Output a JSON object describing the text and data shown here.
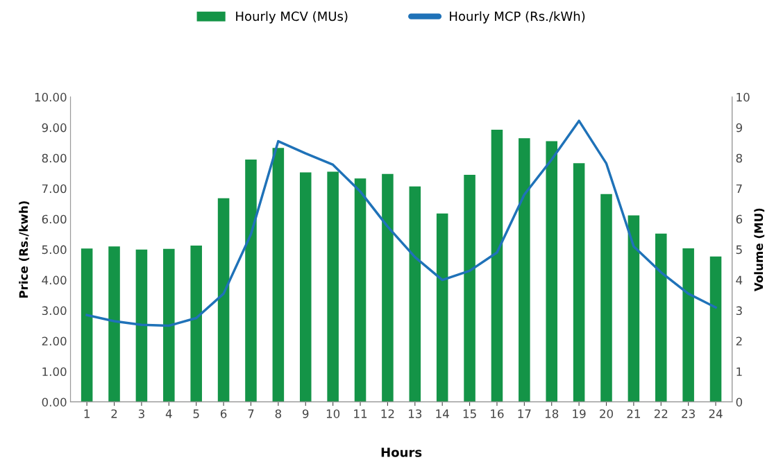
{
  "chart_data": {
    "type": "bar",
    "categories": [
      "1",
      "2",
      "3",
      "4",
      "5",
      "6",
      "7",
      "8",
      "9",
      "10",
      "11",
      "12",
      "13",
      "14",
      "15",
      "16",
      "17",
      "18",
      "19",
      "20",
      "21",
      "22",
      "23",
      "24"
    ],
    "xlabel": "Hours",
    "ylabel": "Price (Rs./kwh)",
    "y2label": "Volume (MU)",
    "series": [
      {
        "name": "Hourly MCV (MUs)",
        "axis": "y2",
        "color": "#149447",
        "values": [
          5.03,
          5.1,
          5.0,
          5.02,
          5.13,
          6.68,
          7.95,
          8.33,
          7.53,
          7.55,
          7.33,
          7.48,
          7.07,
          6.18,
          7.45,
          8.93,
          8.65,
          8.55,
          7.83,
          6.82,
          6.12,
          5.52,
          5.04,
          4.77
        ]
      },
      {
        "name": "Hourly MCP (Rs./kWh)",
        "type": "line",
        "axis": "y",
        "color": "#1f72b8",
        "values": [
          2.85,
          2.65,
          2.53,
          2.5,
          2.75,
          3.55,
          5.5,
          8.55,
          8.15,
          7.78,
          6.9,
          5.75,
          4.75,
          4.0,
          4.3,
          4.9,
          6.8,
          7.95,
          9.22,
          7.82,
          5.1,
          4.25,
          3.55,
          3.1
        ]
      }
    ],
    "ylim": [
      0,
      10
    ],
    "yticks": [
      {
        "value": 0,
        "label": "0.00"
      },
      {
        "value": 1,
        "label": "1.00"
      },
      {
        "value": 2,
        "label": "2.00"
      },
      {
        "value": 3,
        "label": "3.00"
      },
      {
        "value": 4,
        "label": "4.00"
      },
      {
        "value": 5,
        "label": "5.00"
      },
      {
        "value": 6,
        "label": "6.00"
      },
      {
        "value": 7,
        "label": "7.00"
      },
      {
        "value": 8,
        "label": "8.00"
      },
      {
        "value": 9,
        "label": "9.00"
      },
      {
        "value": 10,
        "label": "10.00"
      }
    ],
    "y2lim": [
      0,
      10
    ],
    "y2ticks": [
      0,
      1,
      2,
      3,
      4,
      5,
      6,
      7,
      8,
      9,
      10
    ],
    "legend": "top",
    "grid": false,
    "marker": "none",
    "line_style": "solid"
  }
}
